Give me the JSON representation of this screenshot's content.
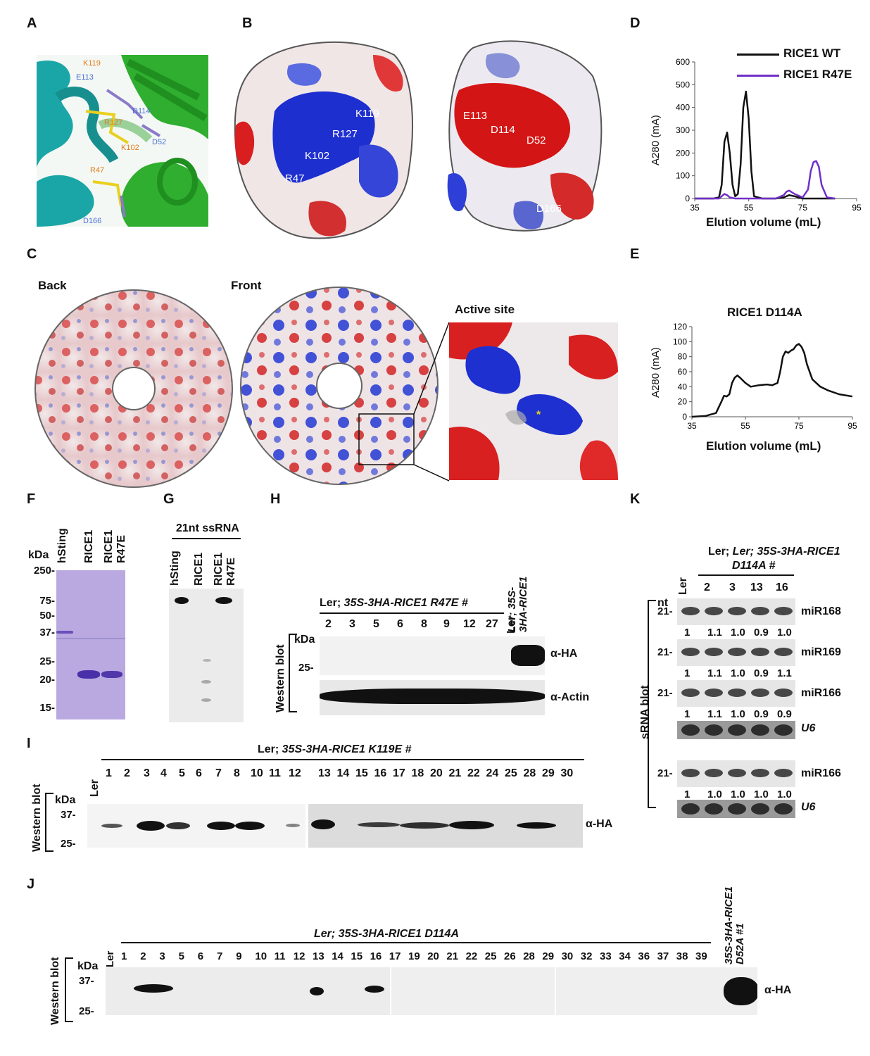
{
  "panels": {
    "A": "A",
    "B": "B",
    "C": "C",
    "D": "D",
    "E": "E",
    "F": "F",
    "G": "G",
    "H": "H",
    "I": "I",
    "J": "J",
    "K": "K"
  },
  "panelA": {
    "labels": [
      "K119",
      "E113",
      "D114",
      "R127",
      "K102",
      "D52",
      "R47",
      "D166"
    ],
    "colors": {
      "helix1": "#1aa6a6",
      "helix2": "#2fae2f",
      "lys": "#e07a1a",
      "asp": "#4a6fd6"
    }
  },
  "panelB": {
    "left_labels": [
      "K119",
      "R127",
      "K102",
      "R47"
    ],
    "right_labels": [
      "E113",
      "D114",
      "D52",
      "D166"
    ]
  },
  "panelC": {
    "back": "Back",
    "front": "Front",
    "active_site": "Active site"
  },
  "chart_D": {
    "type": "line",
    "series": [
      {
        "name": "RICE1 WT",
        "color": "#111111"
      },
      {
        "name": "RICE1 R47E",
        "color": "#7030c8"
      }
    ],
    "xlabel": "Elution volume (mL)",
    "ylabel": "A280 (mA)",
    "xticks": [
      "35",
      "55",
      "75",
      "95"
    ],
    "yticks": [
      "0",
      "100",
      "200",
      "300",
      "400",
      "500",
      "600"
    ]
  },
  "chart_E": {
    "type": "line",
    "title": "RICE1 D114A",
    "xlabel": "Elution volume (mL)",
    "ylabel": "A280 (mA)",
    "xticks": [
      "35",
      "55",
      "75",
      "95"
    ],
    "yticks": [
      "0",
      "20",
      "40",
      "60",
      "80",
      "100",
      "120"
    ]
  },
  "chart_data": [
    {
      "type": "line",
      "xlabel": "Elution volume (mL)",
      "ylabel": "A280 (mA)",
      "xlim": [
        35,
        95
      ],
      "ylim": [
        0,
        600
      ],
      "series": [
        {
          "name": "RICE1 WT",
          "x": [
            35,
            42,
            44,
            45,
            46,
            47,
            48,
            49,
            50,
            51,
            52,
            53,
            54,
            55,
            56,
            57,
            60,
            65,
            68,
            70,
            72,
            75,
            80,
            85,
            87
          ],
          "y": [
            0,
            0,
            5,
            60,
            250,
            290,
            200,
            60,
            10,
            20,
            150,
            400,
            470,
            350,
            120,
            10,
            0,
            0,
            5,
            15,
            10,
            0,
            0,
            0,
            0
          ]
        },
        {
          "name": "RICE1 R47E",
          "x": [
            35,
            44,
            45,
            46,
            47,
            48,
            50,
            55,
            65,
            68,
            69,
            70,
            72,
            75,
            77,
            78,
            79,
            80,
            81,
            82,
            84,
            87
          ],
          "y": [
            0,
            0,
            10,
            20,
            15,
            5,
            0,
            0,
            0,
            15,
            30,
            35,
            20,
            5,
            40,
            120,
            160,
            165,
            140,
            60,
            5,
            0
          ]
        }
      ]
    },
    {
      "type": "line",
      "title": "RICE1 D114A",
      "xlabel": "Elution volume (mL)",
      "ylabel": "A280 (mA)",
      "xlim": [
        35,
        95
      ],
      "ylim": [
        0,
        120
      ],
      "series": [
        {
          "name": "",
          "x": [
            35,
            40,
            44,
            46,
            47,
            48,
            49,
            50,
            51,
            52,
            53,
            55,
            57,
            60,
            63,
            65,
            67,
            68,
            69,
            70,
            71,
            72,
            73,
            74,
            75,
            76,
            77,
            78,
            80,
            83,
            86,
            90,
            95
          ],
          "y": [
            0,
            1,
            5,
            20,
            28,
            27,
            30,
            45,
            52,
            55,
            52,
            45,
            40,
            42,
            43,
            42,
            45,
            60,
            80,
            87,
            85,
            88,
            90,
            95,
            97,
            93,
            85,
            70,
            50,
            40,
            35,
            30,
            27
          ]
        }
      ]
    }
  ],
  "panelF": {
    "kda": "kDa",
    "markers": [
      "250-",
      "75-",
      "50-",
      "37-",
      "25-",
      "20-",
      "15-"
    ],
    "lanes": [
      "hSting",
      "RICE1",
      "RICE1\nR47E"
    ]
  },
  "panelG": {
    "title": "21nt ssRNA",
    "lanes": [
      "hSting",
      "RICE1",
      "RICE1\nR47E"
    ]
  },
  "panelH": {
    "header_prefix": "Ler; ",
    "header_italic": "35S-3HA-RICE1 R47E #",
    "lanes": [
      "2",
      "3",
      "5",
      "6",
      "8",
      "9",
      "12",
      "27",
      "Ler"
    ],
    "last_lane": "Ler; 35S-\n3HA-RICE1",
    "kda": "kDa",
    "marker": "25-",
    "side": "Western blot",
    "antibodies": [
      "α-HA",
      "α-Actin"
    ]
  },
  "panelI": {
    "header_prefix": "Ler; ",
    "header_italic": "35S-3HA-RICE1 K119E #",
    "lanes_left": [
      "Ler",
      "1",
      "2",
      "3",
      "4",
      "5",
      "6",
      "7",
      "8",
      "10",
      "11",
      "12"
    ],
    "lanes_right": [
      "13",
      "14",
      "15",
      "16",
      "17",
      "18",
      "20",
      "21",
      "22",
      "24",
      "25",
      "28",
      "29",
      "30"
    ],
    "kda": "kDa",
    "markers": [
      "37-",
      "25-"
    ],
    "side": "Western blot",
    "antibody": "α-HA"
  },
  "panelJ": {
    "header": "Ler; 35S-3HA-RICE1 D114A",
    "lanes": [
      "Ler",
      "1",
      "2",
      "3",
      "5",
      "6",
      "7",
      "9",
      "10",
      "11",
      "12",
      "13",
      "14",
      "15",
      "16",
      "17",
      "19",
      "20",
      "21",
      "22",
      "25",
      "26",
      "28",
      "29",
      "30",
      "32",
      "33",
      "34",
      "36",
      "37",
      "38",
      "39"
    ],
    "last_lane": "35S-3HA-RICE1\nD52A #1",
    "kda": "kDa",
    "markers": [
      "37-",
      "25-"
    ],
    "side": "Western blot",
    "antibody": "α-HA"
  },
  "panelK": {
    "header_line1": "Ler; 35S-3HA-RICE1",
    "header_line2": "D114A #",
    "lanes": [
      "Ler",
      "2",
      "3",
      "13",
      "16"
    ],
    "nt": "nt",
    "marker": "21-",
    "side": "sRNA blot",
    "rows": [
      {
        "name": "miR168",
        "values": [
          "1",
          "1.1",
          "1.0",
          "0.9",
          "1.0"
        ]
      },
      {
        "name": "miR169",
        "values": [
          "1",
          "1.1",
          "1.0",
          "0.9",
          "1.1"
        ]
      },
      {
        "name": "miR166",
        "values": [
          "1",
          "1.1",
          "1.0",
          "0.9",
          "0.9"
        ]
      },
      {
        "name": "U6"
      },
      {
        "name": "miR166",
        "values": [
          "1",
          "1.0",
          "1.0",
          "1.0",
          "1.0"
        ]
      },
      {
        "name": "U6"
      }
    ]
  }
}
